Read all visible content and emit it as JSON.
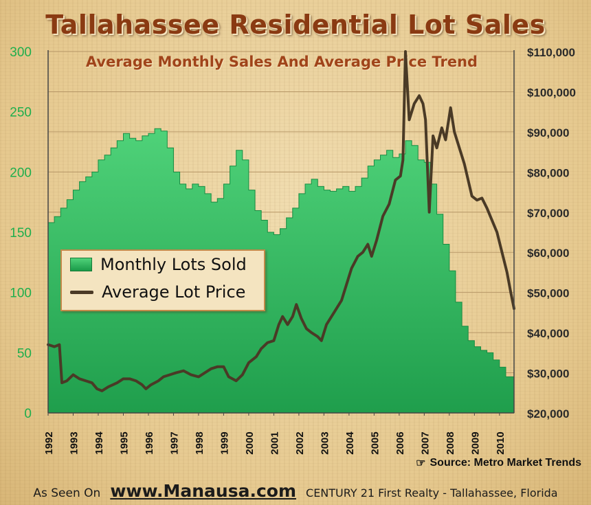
{
  "title": "Tallahassee Residential Lot Sales",
  "subtitle": "Average Monthly Sales And Average Price Trend",
  "source": "Source: Metro Market Trends",
  "footer": {
    "seen_on": "As Seen On",
    "site": "www.Manausa.com",
    "firm": "CENTURY 21 First Realty - Tallahassee,  Florida"
  },
  "colors": {
    "area_fill": "#2fb35a",
    "price_line": "#4a3a26",
    "left_axis": "#1fae4c",
    "right_axis": "#2a2a2a",
    "title": "#8a3a12"
  },
  "chart_data": {
    "type": "area",
    "x_range": [
      1992.0,
      2010.58
    ],
    "x_ticks": [
      "1992",
      "1993",
      "1994",
      "1995",
      "1996",
      "1997",
      "1998",
      "1999",
      "2000",
      "2001",
      "2002",
      "2003",
      "2004",
      "2005",
      "2006",
      "2007",
      "2008",
      "2009",
      "2010"
    ],
    "y_left": {
      "range": [
        0,
        300
      ],
      "ticks": [
        "0",
        "50",
        "100",
        "150",
        "200",
        "250",
        "300"
      ]
    },
    "y_right": {
      "range": [
        20000,
        110000
      ],
      "ticks": [
        "$20,000",
        "$30,000",
        "$40,000",
        "$50,000",
        "$60,000",
        "$70,000",
        "$80,000",
        "$90,000",
        "$100,000",
        "$110,000"
      ]
    },
    "grid": true,
    "legend": [
      "Monthly Lots Sold",
      "Average Lot Price"
    ],
    "series": [
      {
        "name": "Monthly Lots Sold",
        "axis": "left",
        "style": "area",
        "x": [
          1992.0,
          1992.25,
          1992.5,
          1992.75,
          1993.0,
          1993.25,
          1993.5,
          1993.75,
          1994.0,
          1994.25,
          1994.5,
          1994.75,
          1995.0,
          1995.25,
          1995.5,
          1995.75,
          1996.0,
          1996.25,
          1996.5,
          1996.75,
          1997.0,
          1997.25,
          1997.5,
          1997.75,
          1998.0,
          1998.25,
          1998.5,
          1998.75,
          1999.0,
          1999.25,
          1999.5,
          1999.75,
          2000.0,
          2000.25,
          2000.5,
          2000.75,
          2001.0,
          2001.25,
          2001.5,
          2001.75,
          2002.0,
          2002.25,
          2002.5,
          2002.75,
          2003.0,
          2003.25,
          2003.5,
          2003.75,
          2004.0,
          2004.25,
          2004.5,
          2004.75,
          2005.0,
          2005.25,
          2005.5,
          2005.75,
          2006.0,
          2006.25,
          2006.5,
          2006.75,
          2007.0,
          2007.25,
          2007.5,
          2007.75,
          2008.0,
          2008.25,
          2008.5,
          2008.75,
          2009.0,
          2009.25,
          2009.5,
          2009.75,
          2010.0,
          2010.25,
          2010.58
        ],
        "values": [
          158,
          163,
          170,
          177,
          185,
          192,
          196,
          200,
          210,
          214,
          220,
          226,
          232,
          228,
          226,
          230,
          232,
          236,
          234,
          220,
          200,
          190,
          186,
          190,
          188,
          182,
          175,
          178,
          190,
          205,
          218,
          210,
          185,
          168,
          160,
          150,
          148,
          153,
          162,
          170,
          182,
          190,
          194,
          188,
          185,
          184,
          186,
          188,
          184,
          188,
          195,
          205,
          210,
          214,
          218,
          212,
          215,
          226,
          222,
          210,
          208,
          190,
          165,
          140,
          118,
          92,
          72,
          60,
          55,
          52,
          50,
          44,
          38,
          30,
          40
        ]
      },
      {
        "name": "Average Lot Price",
        "axis": "right",
        "style": "line",
        "x": [
          1992.0,
          1992.25,
          1992.45,
          1992.55,
          1992.75,
          1993.0,
          1993.25,
          1993.5,
          1993.75,
          1993.95,
          1994.15,
          1994.4,
          1994.75,
          1995.0,
          1995.25,
          1995.5,
          1995.75,
          1995.9,
          1996.1,
          1996.4,
          1996.6,
          1996.85,
          1997.1,
          1997.4,
          1997.7,
          1998.0,
          1998.25,
          1998.5,
          1998.75,
          1999.0,
          1999.2,
          1999.5,
          1999.75,
          2000.0,
          2000.3,
          2000.5,
          2000.75,
          2001.0,
          2001.2,
          2001.35,
          2001.55,
          2001.75,
          2001.9,
          2002.1,
          2002.3,
          2002.5,
          2002.75,
          2002.9,
          2003.1,
          2003.4,
          2003.7,
          2003.9,
          2004.1,
          2004.35,
          2004.55,
          2004.75,
          2004.9,
          2005.1,
          2005.35,
          2005.6,
          2005.85,
          2006.05,
          2006.15,
          2006.25,
          2006.4,
          2006.6,
          2006.8,
          2006.95,
          2007.05,
          2007.2,
          2007.35,
          2007.5,
          2007.7,
          2007.85,
          2008.05,
          2008.2,
          2008.45,
          2008.6,
          2008.75,
          2008.9,
          2009.1,
          2009.3,
          2009.5,
          2009.7,
          2009.9,
          2010.1,
          2010.3,
          2010.45,
          2010.58
        ],
        "values": [
          37000,
          36500,
          37000,
          27500,
          28000,
          29500,
          28500,
          28000,
          27500,
          26000,
          25500,
          26500,
          27500,
          28500,
          28500,
          28000,
          27000,
          26000,
          27000,
          28000,
          29000,
          29500,
          30000,
          30500,
          29500,
          29000,
          30000,
          31000,
          31500,
          31500,
          29000,
          28000,
          29500,
          32500,
          34000,
          36000,
          37500,
          38000,
          42000,
          44000,
          42000,
          44000,
          47000,
          43500,
          41000,
          40000,
          39000,
          38000,
          42000,
          45000,
          48000,
          52000,
          56000,
          59000,
          60000,
          62000,
          59000,
          63000,
          69000,
          72000,
          78000,
          79000,
          83000,
          110000,
          93000,
          97000,
          99000,
          97000,
          93000,
          70000,
          89000,
          86000,
          91000,
          88000,
          96000,
          90000,
          85000,
          82000,
          78000,
          74000,
          73000,
          73500,
          71000,
          68000,
          65000,
          60000,
          55000,
          50000,
          46000
        ]
      }
    ]
  }
}
